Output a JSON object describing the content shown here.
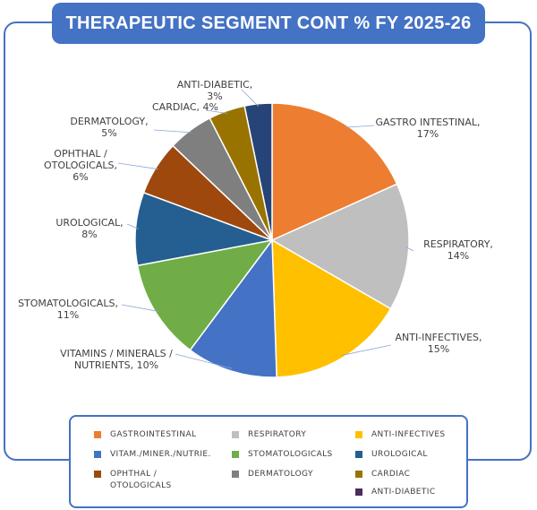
{
  "title": "THERAPEUTIC SEGMENT CONT % FY 2025-26",
  "chart_data": {
    "type": "pie",
    "title": "THERAPEUTIC SEGMENT CONT % FY 2025-26",
    "slices": [
      {
        "name": "GASTRO INTESTINAL,",
        "value": 17,
        "label_value": "17%",
        "color": "#ed7d31"
      },
      {
        "name": "RESPIRATORY,",
        "value": 14,
        "label_value": "14%",
        "color": "#bfbfbf"
      },
      {
        "name": "ANTI-INFECTIVES,",
        "value": 15,
        "label_value": "15%",
        "color": "#ffc000"
      },
      {
        "name": "VITAMINS / MINERALS / NUTRIENTS,",
        "value": 10,
        "label_value": "10%",
        "color": "#4472c4"
      },
      {
        "name": "STOMATOLOGICALS,",
        "value": 11,
        "label_value": "11%",
        "color": "#70ad47"
      },
      {
        "name": "UROLOGICAL,",
        "value": 8,
        "label_value": "8%",
        "color": "#255e91"
      },
      {
        "name": "OPHTHAL / OTOLOGICALS,",
        "value": 6,
        "label_value": "6%",
        "color": "#9e480e"
      },
      {
        "name": "DERMATOLOGY,",
        "value": 5,
        "label_value": "5%",
        "color": "#7f7f7f"
      },
      {
        "name": "CARDIAC,",
        "value": 4,
        "label_value": "4%",
        "color": "#997300"
      },
      {
        "name": "ANTI-DIABETIC,",
        "value": 3,
        "label_value": "3%",
        "color": "#264478"
      }
    ],
    "legend": [
      {
        "label": "GASTROINTESTINAL",
        "color": "#ed7d31"
      },
      {
        "label": "RESPIRATORY",
        "color": "#bfbfbf"
      },
      {
        "label": "ANTI-INFECTIVES",
        "color": "#ffc000"
      },
      {
        "label": "VITAM./MINER./NUTRIE.",
        "color": "#4472c4"
      },
      {
        "label": "STOMATOLOGICALS",
        "color": "#70ad47"
      },
      {
        "label": "UROLOGICAL",
        "color": "#255e91"
      },
      {
        "label": "OPHTHAL / OTOLOGICALS",
        "color": "#9e480e"
      },
      {
        "label": "DERMATOLOGY",
        "color": "#7f7f7f"
      },
      {
        "label": "CARDIAC",
        "color": "#997300"
      },
      {
        "label": "ANTI-DIABETIC",
        "color": "#4a2c5e"
      }
    ],
    "legend_placement": "bottom"
  }
}
